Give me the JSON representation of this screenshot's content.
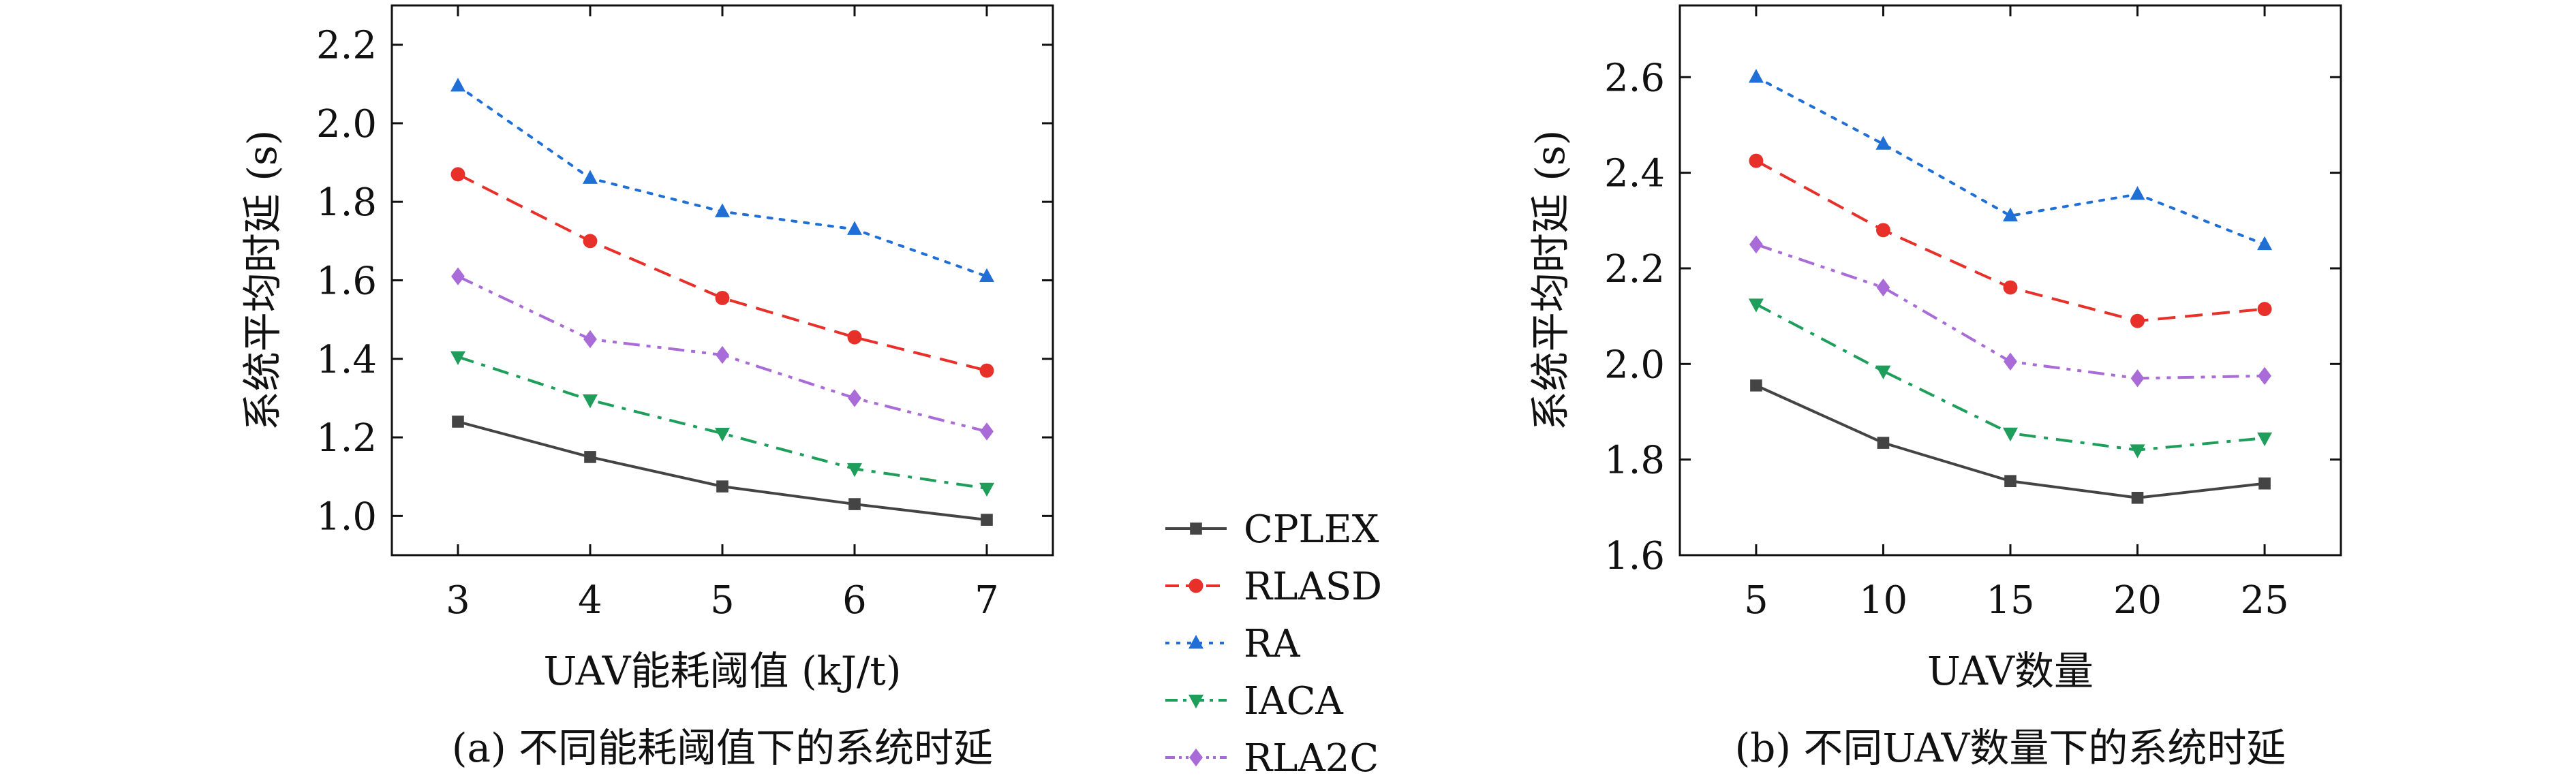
{
  "chart_data": [
    {
      "type": "line",
      "caption": "(a) 不同能耗阈值下的系统时延",
      "xlabel": "UAV能耗阈值 (kJ/t)",
      "ylabel": "系统平均时延 (s)",
      "x": [
        3,
        4,
        5,
        6,
        7
      ],
      "xlim": [
        2.5,
        7.5
      ],
      "ylim": [
        0.9,
        2.3
      ],
      "yticks": [
        1.0,
        1.2,
        1.4,
        1.6,
        1.8,
        2.0,
        2.2
      ],
      "ytick_labels": [
        "1.0",
        "1.2",
        "1.4",
        "1.6",
        "1.8",
        "2.0",
        "2.2"
      ],
      "xtick_labels": [
        "3",
        "4",
        "5",
        "6",
        "7"
      ],
      "grid": false,
      "series": [
        {
          "name": "CPLEX",
          "values": [
            1.24,
            1.15,
            1.075,
            1.03,
            0.99
          ]
        },
        {
          "name": "RLASD",
          "values": [
            1.87,
            1.7,
            1.555,
            1.455,
            1.37
          ]
        },
        {
          "name": "RA",
          "values": [
            2.095,
            1.86,
            1.775,
            1.73,
            1.61
          ]
        },
        {
          "name": "IACA",
          "values": [
            1.405,
            1.295,
            1.21,
            1.12,
            1.07
          ]
        },
        {
          "name": "RLA2C",
          "values": [
            1.61,
            1.45,
            1.41,
            1.3,
            1.215
          ]
        }
      ]
    },
    {
      "type": "line",
      "caption": "(b) 不同UAV数量下的系统时延",
      "xlabel": "UAV数量",
      "ylabel": "系统平均时延 (s)",
      "x": [
        5,
        10,
        15,
        20,
        25
      ],
      "xlim": [
        2,
        28
      ],
      "ylim": [
        1.6,
        2.75
      ],
      "yticks": [
        1.6,
        1.8,
        2.0,
        2.2,
        2.4,
        2.6
      ],
      "ytick_labels": [
        "1.6",
        "1.8",
        "2.0",
        "2.2",
        "2.4",
        "2.6"
      ],
      "xtick_labels": [
        "5",
        "10",
        "15",
        "20",
        "25"
      ],
      "grid": false,
      "series": [
        {
          "name": "CPLEX",
          "values": [
            1.955,
            1.835,
            1.755,
            1.72,
            1.75
          ]
        },
        {
          "name": "RLASD",
          "values": [
            2.425,
            2.28,
            2.16,
            2.09,
            2.115
          ]
        },
        {
          "name": "RA",
          "values": [
            2.6,
            2.46,
            2.31,
            2.355,
            2.25
          ]
        },
        {
          "name": "IACA",
          "values": [
            2.125,
            1.985,
            1.855,
            1.82,
            1.845
          ]
        },
        {
          "name": "RLA2C",
          "values": [
            2.25,
            2.16,
            2.005,
            1.97,
            1.975
          ]
        }
      ]
    }
  ],
  "legend": {
    "placement": "between-panels-bottom",
    "items": [
      {
        "name": "CPLEX",
        "color": "#444444",
        "dash": "solid",
        "marker": "square"
      },
      {
        "name": "RLASD",
        "color": "#e8302a",
        "dash": "dashed",
        "marker": "circle"
      },
      {
        "name": "RA",
        "color": "#1f6fd6",
        "dash": "dotted",
        "marker": "triangle-up"
      },
      {
        "name": "IACA",
        "color": "#1e9e5a",
        "dash": "dashdot",
        "marker": "triangle-down"
      },
      {
        "name": "RLA2C",
        "color": "#a86bd8",
        "dash": "dashdotdot",
        "marker": "diamond"
      }
    ]
  }
}
